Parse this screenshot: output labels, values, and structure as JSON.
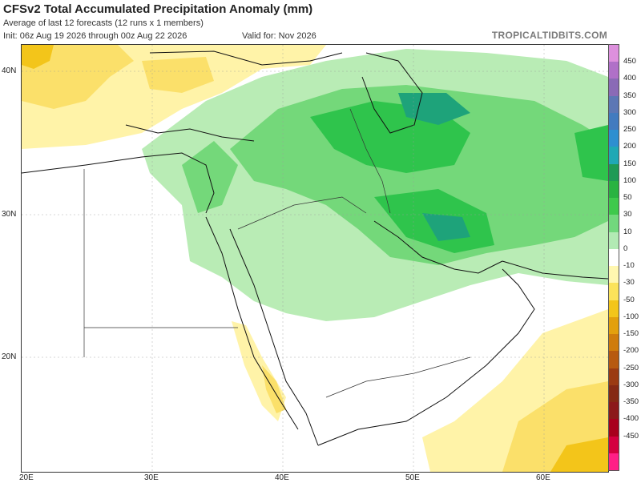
{
  "header": {
    "title": "CFSv2 Total Accumulated Precipitation Anomaly (mm)",
    "subtitle": "Average of last 12 forecasts (12 runs x 1 members)",
    "init": "Init: 06z Aug 19 2026 through 00z Aug 22 2026",
    "valid": "Valid for: Nov 2026",
    "brand": "TROPICALTIDBITS.COM"
  },
  "axes": {
    "lat_labels": [
      "40N",
      "30N",
      "20N"
    ],
    "lon_labels": [
      "20E",
      "30E",
      "40E",
      "50E",
      "60E"
    ]
  },
  "colorbar": {
    "labels": [
      "450",
      "400",
      "350",
      "300",
      "250",
      "200",
      "150",
      "100",
      "50",
      "30",
      "10",
      "0",
      "-10",
      "-30",
      "-50",
      "-100",
      "-150",
      "-200",
      "-250",
      "-300",
      "-350",
      "-400",
      "-450"
    ],
    "colors": [
      "#dd90dd",
      "#b070c8",
      "#8a6ab6",
      "#5c77b5",
      "#427bbf",
      "#2d8fd0",
      "#1fa8b5",
      "#1e9a55",
      "#29b341",
      "#3ec94c",
      "#72d87d",
      "#b2eab4",
      "#ffffff",
      "#fff7b0",
      "#fbe35a",
      "#f3c51a",
      "#e3a00d",
      "#cf7c0c",
      "#b75a10",
      "#9b3b12",
      "#852a14",
      "#8c1a1a",
      "#a8001d",
      "#d40040",
      "#ff1f86"
    ]
  },
  "map": {
    "precip_color_legend": {
      "wet_light": "#b9ecb5",
      "wet_mid": "#74d87a",
      "wet_strong": "#2fc44c",
      "wet_max": "#1ea37a",
      "dry_light": "#fff3a8",
      "dry_mid": "#fbe06a",
      "dry_strong": "#f3c51a"
    }
  }
}
